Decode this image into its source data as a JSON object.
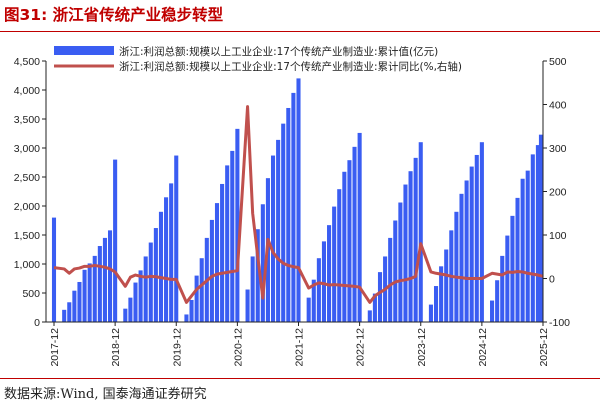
{
  "figure": {
    "title": "图31:  浙江省传统产业稳步转型",
    "source": "数据来源:Wind, 国泰海通证券研究"
  },
  "colors": {
    "title": "#c00000",
    "bar": "#3a5df2",
    "line": "#c0504d",
    "axis": "#222222"
  },
  "chart_data": {
    "type": "bar",
    "combo": "bar + line (secondary axis)",
    "x_tick_labels": [
      "2017-12",
      "2018-12",
      "2019-12",
      "2020-12",
      "2021-12",
      "2022-12",
      "2023-12",
      "2024-12",
      "2025-12"
    ],
    "x_range": [
      "2017-12",
      "2025-12"
    ],
    "y_left_range": [
      0,
      4500
    ],
    "y_left_ticks": [
      "0",
      "500",
      "1,000",
      "1,500",
      "2,000",
      "2,500",
      "3,000",
      "3,500",
      "4,000",
      "4,500"
    ],
    "y_right_range": [
      -100,
      500
    ],
    "y_right_ticks": [
      "-100",
      "0",
      "100",
      "200",
      "300",
      "400",
      "500"
    ],
    "legend_position": "top",
    "grid": false,
    "series": [
      {
        "name": "浙江:利润总额:规模以上工业企业:17个传统产业制造业:累计值(亿元)",
        "type": "bar",
        "axis": "left",
        "dates": [
          "2017-12",
          "2018-02",
          "2018-03",
          "2018-04",
          "2018-05",
          "2018-06",
          "2018-07",
          "2018-08",
          "2018-09",
          "2018-10",
          "2018-11",
          "2018-12",
          "2019-02",
          "2019-03",
          "2019-04",
          "2019-05",
          "2019-06",
          "2019-07",
          "2019-08",
          "2019-09",
          "2019-10",
          "2019-11",
          "2019-12",
          "2020-02",
          "2020-03",
          "2020-04",
          "2020-05",
          "2020-06",
          "2020-07",
          "2020-08",
          "2020-09",
          "2020-10",
          "2020-11",
          "2020-12",
          "2021-02",
          "2021-03",
          "2021-04",
          "2021-05",
          "2021-06",
          "2021-07",
          "2021-08",
          "2021-09",
          "2021-10",
          "2021-11",
          "2021-12",
          "2022-02",
          "2022-03",
          "2022-04",
          "2022-05",
          "2022-06",
          "2022-07",
          "2022-08",
          "2022-09",
          "2022-10",
          "2022-11",
          "2022-12",
          "2023-02",
          "2023-03",
          "2023-04",
          "2023-05",
          "2023-06",
          "2023-07",
          "2023-08",
          "2023-09",
          "2023-10",
          "2023-11",
          "2023-12",
          "2024-02",
          "2024-03",
          "2024-04",
          "2024-05",
          "2024-06",
          "2024-07",
          "2024-08",
          "2024-09",
          "2024-10",
          "2024-11",
          "2024-12",
          "2025-02",
          "2025-03",
          "2025-04",
          "2025-05",
          "2025-06",
          "2025-07",
          "2025-08",
          "2025-09",
          "2025-10",
          "2025-11",
          "2025-12"
        ],
        "values": [
          1800,
          210,
          340,
          540,
          690,
          900,
          1010,
          1140,
          1310,
          1450,
          1580,
          2800,
          230,
          420,
          680,
          890,
          1130,
          1370,
          1620,
          1900,
          2150,
          2390,
          2870,
          130,
          380,
          800,
          1100,
          1450,
          1760,
          2050,
          2380,
          2700,
          2950,
          3330,
          560,
          1130,
          1600,
          2030,
          2480,
          2870,
          3140,
          3420,
          3690,
          3950,
          4200,
          420,
          730,
          1100,
          1390,
          1670,
          1990,
          2290,
          2590,
          2790,
          3020,
          3260,
          200,
          490,
          860,
          1130,
          1450,
          1750,
          2060,
          2370,
          2600,
          2830,
          3100,
          300,
          620,
          960,
          1250,
          1580,
          1900,
          2210,
          2440,
          2680,
          2880,
          3100,
          370,
          720,
          1140,
          1490,
          1830,
          2140,
          2470,
          2610,
          2890,
          3050,
          3230
        ]
      },
      {
        "name": "浙江:利润总额:规模以上工业企业:17个传统产业制造业:累计同比(%,右轴)",
        "type": "line",
        "axis": "right",
        "dates": [
          "2017-12",
          "2018-02",
          "2018-03",
          "2018-04",
          "2018-05",
          "2018-06",
          "2018-07",
          "2018-08",
          "2018-09",
          "2018-10",
          "2018-11",
          "2018-12",
          "2019-02",
          "2019-03",
          "2019-04",
          "2019-05",
          "2019-06",
          "2019-07",
          "2019-08",
          "2019-09",
          "2019-10",
          "2019-11",
          "2019-12",
          "2020-02",
          "2020-03",
          "2020-04",
          "2020-05",
          "2020-06",
          "2020-07",
          "2020-08",
          "2020-09",
          "2020-10",
          "2020-11",
          "2020-12",
          "2021-02",
          "2021-03",
          "2021-04",
          "2021-05",
          "2021-06",
          "2021-07",
          "2021-08",
          "2021-09",
          "2021-10",
          "2021-11",
          "2021-12",
          "2022-02",
          "2022-03",
          "2022-04",
          "2022-05",
          "2022-06",
          "2022-07",
          "2022-08",
          "2022-09",
          "2022-10",
          "2022-11",
          "2022-12",
          "2023-02",
          "2023-03",
          "2023-04",
          "2023-05",
          "2023-06",
          "2023-07",
          "2023-08",
          "2023-09",
          "2023-10",
          "2023-11",
          "2023-12",
          "2024-02",
          "2024-03",
          "2024-04",
          "2024-05",
          "2024-06",
          "2024-07",
          "2024-08",
          "2024-09",
          "2024-10",
          "2024-11",
          "2024-12",
          "2025-02",
          "2025-03",
          "2025-04",
          "2025-05",
          "2025-06",
          "2025-07",
          "2025-08",
          "2025-09",
          "2025-10",
          "2025-11",
          "2025-12"
        ],
        "values": [
          25,
          22,
          12,
          22,
          24,
          28,
          28,
          30,
          28,
          26,
          22,
          15,
          -18,
          3,
          8,
          5,
          3,
          5,
          4,
          2,
          0,
          -2,
          -2,
          -55,
          -40,
          -25,
          -15,
          -5,
          5,
          10,
          12,
          14,
          16,
          18,
          395,
          150,
          50,
          -45,
          90,
          60,
          45,
          35,
          30,
          27,
          25,
          -22,
          -15,
          -10,
          -12,
          -15,
          -14,
          -15,
          -16,
          -17,
          -18,
          -20,
          -55,
          -40,
          -32,
          -25,
          -15,
          -8,
          -5,
          -3,
          0,
          5,
          80,
          15,
          12,
          10,
          8,
          5,
          3,
          2,
          0,
          0,
          0,
          0,
          12,
          10,
          8,
          15,
          14,
          16,
          15,
          12,
          10,
          8,
          5
        ]
      }
    ]
  }
}
